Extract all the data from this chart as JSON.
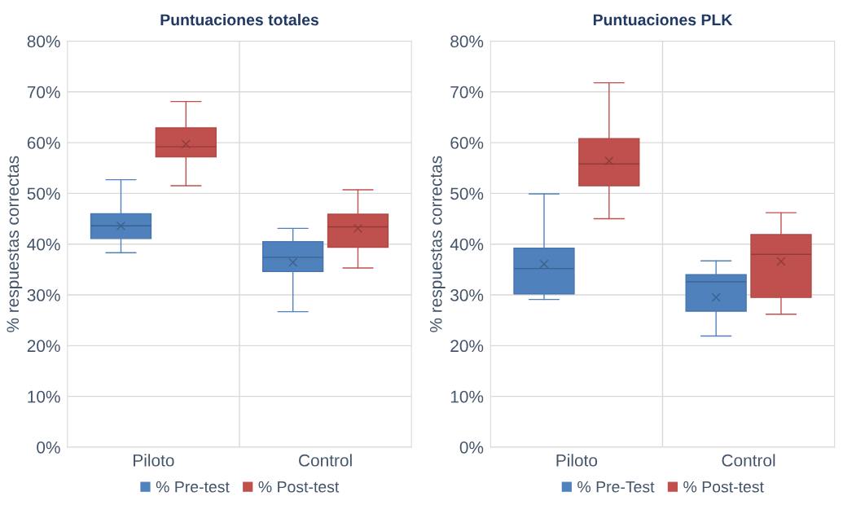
{
  "chart_data": [
    {
      "type": "box",
      "title": "Puntuaciones totales",
      "ylabel": "% respuestas correctas",
      "categories": [
        "Piloto",
        "Control"
      ],
      "series": [
        {
          "name": "% Pre-test",
          "color": "#4f81bd",
          "boxes": [
            {
              "low": 38.3,
              "q1": 41.1,
              "median": 43.6,
              "q3": 46.0,
              "high": 52.7,
              "mean": 43.6
            },
            {
              "low": 26.7,
              "q1": 34.6,
              "median": 37.4,
              "q3": 40.5,
              "high": 43.1,
              "mean": 36.4
            }
          ]
        },
        {
          "name": "% Post-test",
          "color": "#c0504d",
          "boxes": [
            {
              "low": 51.5,
              "q1": 57.2,
              "median": 59.2,
              "q3": 62.9,
              "high": 68.1,
              "mean": 59.7
            },
            {
              "low": 35.3,
              "q1": 39.4,
              "median": 43.4,
              "q3": 45.9,
              "high": 50.7,
              "mean": 43.1
            }
          ]
        }
      ],
      "ylim": [
        0,
        80
      ],
      "yticks": [
        {
          "value": 0,
          "label": "0%"
        },
        {
          "value": 10,
          "label": "10%"
        },
        {
          "value": 20,
          "label": "20%"
        },
        {
          "value": 30,
          "label": "30%"
        },
        {
          "value": 40,
          "label": "40%"
        },
        {
          "value": 50,
          "label": "50%"
        },
        {
          "value": 60,
          "label": "60%"
        },
        {
          "value": 70,
          "label": "70%"
        },
        {
          "value": 80,
          "label": "80%"
        }
      ],
      "grid": true,
      "legend": "bottom",
      "marker": "cross"
    },
    {
      "type": "box",
      "title": "Puntuaciones PLK",
      "ylabel": "% respuestas correctas",
      "categories": [
        "Piloto",
        "Control"
      ],
      "series": [
        {
          "name": "% Pre-Test",
          "color": "#4f81bd",
          "boxes": [
            {
              "low": 29.1,
              "q1": 30.2,
              "median": 35.2,
              "q3": 39.2,
              "high": 49.9,
              "mean": 36.1
            },
            {
              "low": 21.9,
              "q1": 26.8,
              "median": 32.6,
              "q3": 34.0,
              "high": 36.7,
              "mean": 29.5
            }
          ]
        },
        {
          "name": "% Post-test",
          "color": "#c0504d",
          "boxes": [
            {
              "low": 45.0,
              "q1": 51.5,
              "median": 55.8,
              "q3": 60.8,
              "high": 71.8,
              "mean": 56.4
            },
            {
              "low": 26.2,
              "q1": 29.5,
              "median": 38.0,
              "q3": 41.9,
              "high": 46.2,
              "mean": 36.6
            }
          ]
        }
      ],
      "ylim": [
        0,
        80
      ],
      "yticks": [
        {
          "value": 0,
          "label": "0%"
        },
        {
          "value": 10,
          "label": "10%"
        },
        {
          "value": 20,
          "label": "20%"
        },
        {
          "value": 30,
          "label": "30%"
        },
        {
          "value": 40,
          "label": "40%"
        },
        {
          "value": 50,
          "label": "50%"
        },
        {
          "value": 60,
          "label": "60%"
        },
        {
          "value": 70,
          "label": "70%"
        },
        {
          "value": 80,
          "label": "80%"
        }
      ],
      "grid": true,
      "legend": "bottom",
      "marker": "cross"
    }
  ]
}
